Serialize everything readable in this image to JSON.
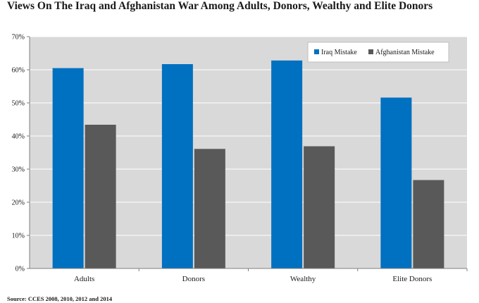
{
  "title": "Views On The Iraq and Afghanistan War Among Adults, Donors, Wealthy and Elite Donors",
  "source": "Source: CCES 2008, 2010, 2012 and 2014",
  "colors": {
    "iraq": "#0070c0",
    "afghanistan": "#595959",
    "plot_bg": "#d9d9d9",
    "grid": "#ffffff"
  },
  "chart_data": {
    "type": "bar",
    "title": "Views On The Iraq and Afghanistan War Among Adults, Donors, Wealthy and Elite Donors",
    "categories": [
      "Adults",
      "Donors",
      "Wealthy",
      "Elite Donors"
    ],
    "series": [
      {
        "name": "Iraq Mistake",
        "values": [
          60.5,
          61.7,
          62.8,
          51.6
        ]
      },
      {
        "name": "Afghanistan Mistake",
        "values": [
          43.4,
          36.1,
          36.9,
          26.7
        ]
      }
    ],
    "ylim": [
      0,
      70
    ],
    "yticks": [
      "0%",
      "10%",
      "20%",
      "30%",
      "40%",
      "50%",
      "60%",
      "70%"
    ],
    "xlabel": "",
    "ylabel": "",
    "grid": true,
    "legend_position": "top-right"
  }
}
